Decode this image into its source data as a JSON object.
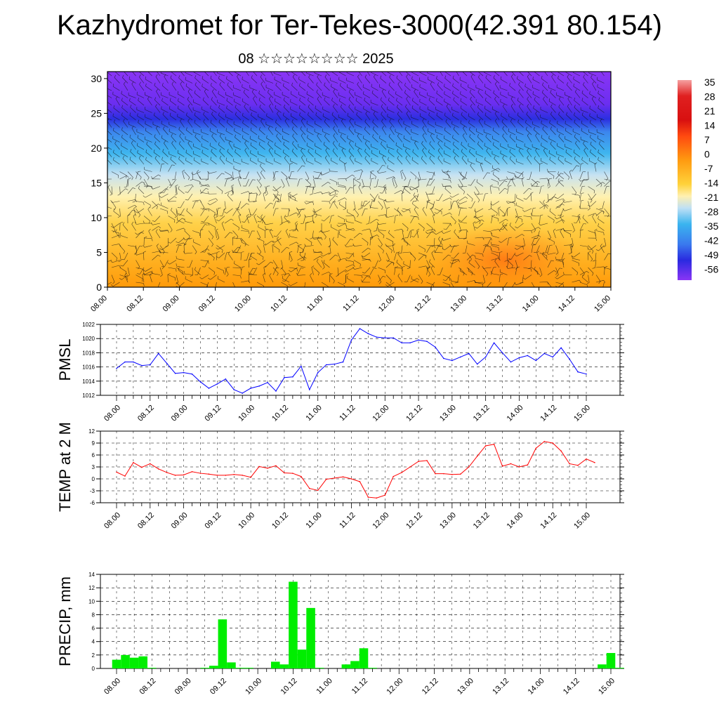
{
  "title": "Kazhydromet for Ter-Tekes-3000(42.391 80.154)",
  "subtitle": "08 ☆☆☆☆☆☆☆☆ 2025",
  "colors": {
    "pmsl": "#0000ff",
    "temp": "#ff0000",
    "precip": "#00ee00",
    "axis": "#000000"
  },
  "chart_data": [
    {
      "type": "heatmap",
      "name": "cross-section",
      "x_ticks": [
        "08.00",
        "08.12",
        "09.00",
        "09.12",
        "10.00",
        "10.12",
        "11.00",
        "11.12",
        "12.00",
        "12.12",
        "13.00",
        "13.12",
        "14.00",
        "14.12",
        "15.00"
      ],
      "y_ticks": [
        0,
        5,
        10,
        15,
        20,
        25,
        30
      ],
      "ylim": [
        0,
        31
      ],
      "colorbar_labels": [
        "35",
        "28",
        "21",
        "14",
        "7",
        "0",
        "-7",
        "-14",
        "-21",
        "-28",
        "-35",
        "-42",
        "-49",
        "-56"
      ],
      "grid": false
    },
    {
      "type": "line",
      "name": "pmsl",
      "ylabel": "PMSL",
      "x_ticks": [
        "08.00",
        "08.12",
        "09.00",
        "09.12",
        "10.00",
        "10.12",
        "11.00",
        "11.12",
        "12.00",
        "12.12",
        "13.00",
        "13.12",
        "14.00",
        "14.12",
        "15.00"
      ],
      "y_ticks": [
        1012,
        1014,
        1016,
        1018,
        1020,
        1022
      ],
      "ylim": [
        1012,
        1022
      ],
      "grid": true,
      "values": [
        1015.8,
        1016.7,
        1016.7,
        1016.2,
        1016.3,
        1017.9,
        1016.5,
        1015.1,
        1015.2,
        1015.0,
        1013.9,
        1013.0,
        1013.6,
        1014.3,
        1012.8,
        1012.3,
        1013.0,
        1013.3,
        1013.8,
        1012.6,
        1014.5,
        1014.6,
        1016.1,
        1012.8,
        1015.2,
        1016.3,
        1016.4,
        1016.7,
        1019.8,
        1021.4,
        1020.7,
        1020.2,
        1020.1,
        1020.1,
        1019.4,
        1019.4,
        1019.8,
        1019.6,
        1018.8,
        1017.2,
        1016.9,
        1017.4,
        1017.9,
        1016.4,
        1017.4,
        1019.4,
        1018.0,
        1016.7,
        1017.3,
        1017.6,
        1016.9,
        1017.9,
        1017.4,
        1018.7,
        1017.1,
        1015.3,
        1015.0
      ]
    },
    {
      "type": "line",
      "name": "temp",
      "ylabel": "TEMP at 2 M",
      "x_ticks": [
        "08.00",
        "08.12",
        "09.00",
        "09.12",
        "10.00",
        "10.12",
        "11.00",
        "11.12",
        "12.00",
        "12.12",
        "13.00",
        "13.12",
        "14.00",
        "14.12",
        "15.00"
      ],
      "y_ticks": [
        -6,
        -3,
        0,
        3,
        6,
        9,
        12
      ],
      "ylim": [
        -6,
        12
      ],
      "grid": true,
      "values": [
        1.7,
        0.7,
        4.1,
        2.9,
        3.8,
        2.5,
        1.6,
        0.9,
        1.0,
        1.8,
        1.4,
        1.2,
        0.9,
        0.9,
        1.1,
        0.9,
        0.4,
        3.1,
        2.7,
        3.3,
        1.5,
        1.4,
        0.6,
        -2.4,
        -2.9,
        -0.1,
        0.2,
        0.5,
        0.0,
        -0.7,
        -4.6,
        -4.8,
        -4.1,
        0.6,
        1.6,
        3.0,
        4.4,
        4.6,
        1.3,
        1.3,
        1.1,
        1.2,
        3.0,
        5.7,
        8.3,
        8.7,
        3.2,
        3.8,
        3.0,
        3.5,
        7.7,
        9.4,
        9.0,
        7.0,
        3.8,
        3.4,
        5.0,
        4.1
      ]
    },
    {
      "type": "bar",
      "name": "precip",
      "ylabel": "PRECIP, mm",
      "x_ticks": [
        "08.00",
        "08.12",
        "09.00",
        "09.12",
        "10.00",
        "10.12",
        "11.00",
        "11.12",
        "12.00",
        "12.12",
        "13.00",
        "13.12",
        "14.00",
        "14.12",
        "15.00"
      ],
      "y_ticks": [
        0,
        2,
        4,
        6,
        8,
        10,
        12,
        14
      ],
      "ylim": [
        0,
        14
      ],
      "grid": true,
      "values": [
        1.3,
        2.0,
        1.6,
        1.8,
        0.1,
        0,
        0,
        0,
        0,
        0,
        0.1,
        0.4,
        7.3,
        0.9,
        0.1,
        0.1,
        0,
        0,
        1.0,
        0.6,
        12.9,
        2.8,
        9.0,
        0.1,
        0,
        0,
        0.6,
        1.1,
        3.0,
        0.1,
        0,
        0,
        0,
        0,
        0,
        0,
        0,
        0,
        0,
        0,
        0,
        0,
        0,
        0,
        0,
        0,
        0,
        0,
        0,
        0,
        0,
        0,
        0,
        0,
        0,
        0.6,
        2.3,
        0.1,
        0
      ]
    }
  ]
}
